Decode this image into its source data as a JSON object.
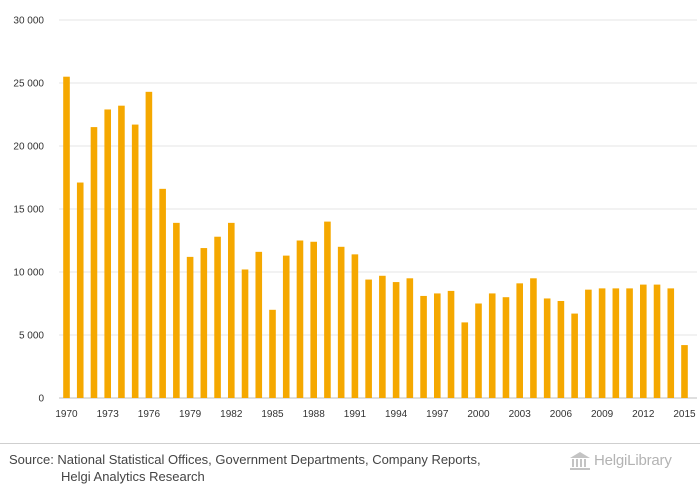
{
  "chart_data": {
    "type": "bar",
    "title": "",
    "xlabel": "",
    "ylabel": "",
    "ylim": [
      0,
      30000
    ],
    "yticks": [
      0,
      5000,
      10000,
      15000,
      20000,
      25000,
      30000
    ],
    "ytick_labels": [
      "0",
      "5 000",
      "10 000",
      "15 000",
      "20 000",
      "25 000",
      "30 000"
    ],
    "grid": true,
    "legend": "none",
    "color": "#f5a800",
    "categories": [
      "1970",
      "1971",
      "1972",
      "1973",
      "1974",
      "1975",
      "1976",
      "1977",
      "1978",
      "1979",
      "1980",
      "1981",
      "1982",
      "1983",
      "1984",
      "1985",
      "1986",
      "1987",
      "1988",
      "1989",
      "1990",
      "1991",
      "1992",
      "1993",
      "1994",
      "1995",
      "1996",
      "1997",
      "1998",
      "1999",
      "2000",
      "2001",
      "2002",
      "2003",
      "2004",
      "2005",
      "2006",
      "2007",
      "2008",
      "2009",
      "2010",
      "2011",
      "2012",
      "2013",
      "2014",
      "2015"
    ],
    "xtick_labels": [
      "1970",
      "1973",
      "1976",
      "1979",
      "1982",
      "1985",
      "1988",
      "1991",
      "1994",
      "1997",
      "2000",
      "2003",
      "2006",
      "2009",
      "2012",
      "2015"
    ],
    "values": [
      25500,
      17100,
      21500,
      22900,
      23200,
      21700,
      24300,
      16600,
      13900,
      11200,
      11900,
      12800,
      13900,
      10200,
      11600,
      7000,
      11300,
      12500,
      12400,
      14000,
      12000,
      11400,
      9400,
      9700,
      9200,
      9500,
      8100,
      8300,
      8500,
      6000,
      7500,
      8300,
      8000,
      9100,
      9500,
      7900,
      7700,
      6700,
      8600,
      8700,
      8700,
      8700,
      9000,
      9000,
      8700,
      4200
    ]
  },
  "footer": {
    "source_line1": "Source: National Statistical Offices, Government Departments, Company Reports,",
    "source_line2": "Helgi Analytics Research",
    "logo_text": "HelgiLibrary"
  }
}
